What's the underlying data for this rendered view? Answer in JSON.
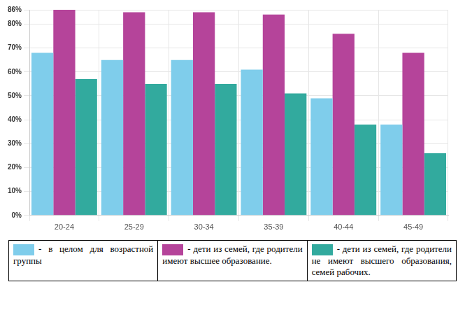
{
  "chart_data": {
    "type": "bar",
    "categories": [
      "20-24",
      "25-29",
      "30-34",
      "35-39",
      "40-44",
      "45-49"
    ],
    "series": [
      {
        "name": "- в целом для возрастной группы",
        "color": "#7fcdeb",
        "values": [
          68,
          65,
          65,
          61,
          49,
          38
        ]
      },
      {
        "name": "- дети из семей, где родители имеют высшее образование.",
        "color": "#b5449a",
        "values": [
          86,
          85,
          85,
          84,
          76,
          68
        ]
      },
      {
        "name": "- дети из семей, где родители не имеют высшего образования, семей рабочих.",
        "color": "#32aa9e",
        "values": [
          57,
          55,
          55,
          51,
          38,
          26
        ]
      }
    ],
    "ylim": [
      0,
      86
    ],
    "yticks": [
      {
        "value": 0,
        "label": "0%"
      },
      {
        "value": 10,
        "label": "10%"
      },
      {
        "value": 20,
        "label": "20%"
      },
      {
        "value": 30,
        "label": "30%"
      },
      {
        "value": 40,
        "label": "40%"
      },
      {
        "value": 50,
        "label": "50%"
      },
      {
        "value": 60,
        "label": "60%"
      },
      {
        "value": 70,
        "label": "70%"
      },
      {
        "value": 80,
        "label": "80%"
      },
      {
        "value": 86,
        "label": "86%"
      }
    ],
    "grid": true,
    "legend": "bottom"
  }
}
